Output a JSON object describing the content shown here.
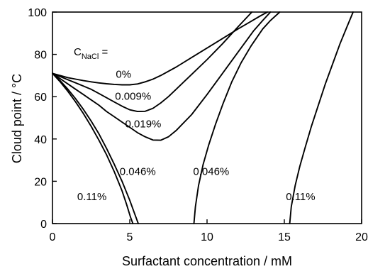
{
  "chart_data": {
    "type": "line",
    "title": "",
    "xlabel": "Surfactant concentration / mM",
    "ylabel": "Cloud point / °C",
    "xlim": [
      0,
      20
    ],
    "ylim": [
      0,
      100
    ],
    "x_ticks": [
      0,
      5,
      10,
      15,
      20
    ],
    "y_ticks": [
      0,
      20,
      40,
      60,
      80,
      100
    ],
    "grid": false,
    "legend": "none",
    "series": [
      {
        "name": "0%",
        "points": [
          [
            0,
            71
          ],
          [
            0.5,
            70
          ],
          [
            1,
            69
          ],
          [
            1.5,
            68.3
          ],
          [
            2,
            67.6
          ],
          [
            2.5,
            67
          ],
          [
            3,
            66.5
          ],
          [
            3.5,
            66.1
          ],
          [
            4,
            65.8
          ],
          [
            4.5,
            65.6
          ],
          [
            5,
            65.6
          ],
          [
            5.5,
            66
          ],
          [
            6,
            67
          ],
          [
            6.5,
            68.3
          ],
          [
            7,
            70
          ],
          [
            8,
            74
          ],
          [
            9,
            78.5
          ],
          [
            10,
            83
          ],
          [
            11,
            87.5
          ],
          [
            12,
            92
          ],
          [
            12.7,
            95
          ],
          [
            13.4,
            98
          ],
          [
            13.9,
            100
          ]
        ]
      },
      {
        "name": "0.009%",
        "points": [
          [
            0,
            71
          ],
          [
            0.5,
            69.5
          ],
          [
            1,
            68
          ],
          [
            1.5,
            66.5
          ],
          [
            2,
            65
          ],
          [
            2.5,
            63.5
          ],
          [
            3,
            61.5
          ],
          [
            3.5,
            59.5
          ],
          [
            4,
            57.5
          ],
          [
            4.5,
            55.5
          ],
          [
            5,
            53.8
          ],
          [
            5.5,
            53
          ],
          [
            6,
            53.1
          ],
          [
            6.5,
            54.5
          ],
          [
            7,
            57
          ],
          [
            7.5,
            60
          ],
          [
            8,
            63.5
          ],
          [
            8.5,
            67
          ],
          [
            9,
            70.5
          ],
          [
            10,
            77.5
          ],
          [
            11,
            85
          ],
          [
            12,
            93
          ],
          [
            12.9,
            100
          ]
        ]
      },
      {
        "name": "0.019%",
        "points": [
          [
            0,
            71
          ],
          [
            0.5,
            68.5
          ],
          [
            1,
            66
          ],
          [
            1.5,
            63.5
          ],
          [
            2,
            61
          ],
          [
            2.5,
            58.5
          ],
          [
            3,
            56
          ],
          [
            3.5,
            53
          ],
          [
            4,
            50.5
          ],
          [
            4.5,
            48
          ],
          [
            5,
            45.5
          ],
          [
            5.5,
            43
          ],
          [
            6,
            41
          ],
          [
            6.5,
            39.5
          ],
          [
            7,
            39.4
          ],
          [
            7.5,
            41
          ],
          [
            8,
            44
          ],
          [
            9,
            51.5
          ],
          [
            10,
            61
          ],
          [
            11,
            71
          ],
          [
            12,
            81
          ],
          [
            13,
            91
          ],
          [
            13.6,
            96
          ],
          [
            14.1,
            100
          ]
        ]
      },
      {
        "name": "0.046%",
        "points": [
          [
            0,
            71
          ],
          [
            0.5,
            67.5
          ],
          [
            1,
            63.5
          ],
          [
            1.5,
            59
          ],
          [
            2,
            54
          ],
          [
            2.5,
            48.5
          ],
          [
            3,
            42.5
          ],
          [
            3.5,
            35.5
          ],
          [
            4,
            28
          ],
          [
            4.5,
            20
          ],
          [
            5,
            11
          ],
          [
            5.3,
            5
          ],
          [
            5.55,
            0
          ]
        ]
      },
      {
        "name": "0.11%",
        "points": [
          [
            0,
            71
          ],
          [
            0.5,
            67
          ],
          [
            1,
            62.5
          ],
          [
            1.5,
            57.5
          ],
          [
            2,
            52
          ],
          [
            2.5,
            46
          ],
          [
            3,
            39.5
          ],
          [
            3.5,
            32.5
          ],
          [
            4,
            24.5
          ],
          [
            4.5,
            15.5
          ],
          [
            4.8,
            9
          ],
          [
            5.05,
            3
          ],
          [
            5.2,
            0
          ]
        ]
      },
      {
        "name": "0.046%",
        "points": [
          [
            9.15,
            0
          ],
          [
            9.25,
            8
          ],
          [
            9.45,
            18
          ],
          [
            9.75,
            28
          ],
          [
            10.1,
            37
          ],
          [
            10.55,
            47
          ],
          [
            11.05,
            57
          ],
          [
            11.6,
            67
          ],
          [
            12.2,
            76
          ],
          [
            12.85,
            84
          ],
          [
            13.6,
            92
          ],
          [
            14.1,
            96
          ],
          [
            14.7,
            100
          ]
        ]
      },
      {
        "name": "0.11%",
        "points": [
          [
            15.35,
            0
          ],
          [
            15.45,
            8
          ],
          [
            15.7,
            18
          ],
          [
            16,
            27
          ],
          [
            16.35,
            36
          ],
          [
            16.75,
            46
          ],
          [
            17.2,
            56
          ],
          [
            17.65,
            66
          ],
          [
            18.15,
            76
          ],
          [
            18.6,
            85
          ],
          [
            19.05,
            93
          ],
          [
            19.45,
            100
          ]
        ]
      }
    ],
    "annotations": [
      {
        "text": "0%",
        "x": 4.1,
        "y": 69
      },
      {
        "text": "0.009%",
        "x": 4.05,
        "y": 58.5
      },
      {
        "text": "0.019%",
        "x": 4.7,
        "y": 45.5
      },
      {
        "text": "0.046%",
        "x": 4.35,
        "y": 23
      },
      {
        "text": "0.11%",
        "x": 1.6,
        "y": 11
      },
      {
        "text": "0.046%",
        "x": 9.1,
        "y": 23
      },
      {
        "text": "0.11%",
        "x": 15.1,
        "y": 11
      }
    ],
    "legend_title": {
      "main": "C",
      "sub": "NaCl",
      "suffix": " ="
    }
  }
}
